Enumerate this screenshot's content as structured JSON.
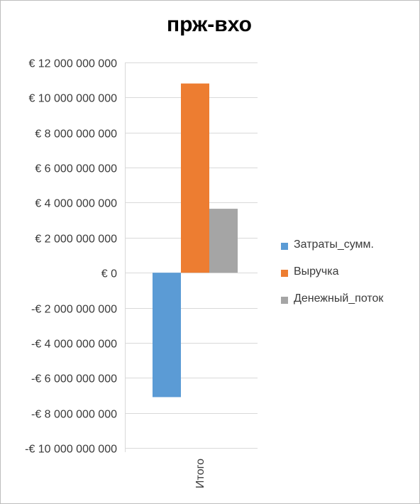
{
  "chart_data": {
    "type": "bar",
    "title": "прж-вхо",
    "categories": [
      "Итого"
    ],
    "series": [
      {
        "name": "Затраты_сумм.",
        "values": [
          -7100000000
        ],
        "color": "#5b9bd5"
      },
      {
        "name": "Выручка",
        "values": [
          10800000000
        ],
        "color": "#ed7d31"
      },
      {
        "name": "Денежный_поток",
        "values": [
          3650000000
        ],
        "color": "#a5a5a5"
      }
    ],
    "ylim": [
      -10000000000,
      12000000000
    ],
    "yticks": [
      12000000000,
      10000000000,
      8000000000,
      6000000000,
      4000000000,
      2000000000,
      0,
      -2000000000,
      -4000000000,
      -6000000000,
      -8000000000,
      -10000000000
    ],
    "ytick_labels": [
      "€ 12 000 000 000",
      "€ 10 000 000 000",
      "€ 8 000 000 000",
      "€ 6 000 000 000",
      "€ 4 000 000 000",
      "€ 2 000 000 000",
      "€ 0",
      "-€ 2 000 000 000",
      "-€ 4 000 000 000",
      "-€ 6 000 000 000",
      "-€ 8 000 000 000",
      "-€ 10 000 000 000"
    ],
    "grid": true,
    "legend_position": "right",
    "xlabel": "",
    "ylabel": ""
  }
}
